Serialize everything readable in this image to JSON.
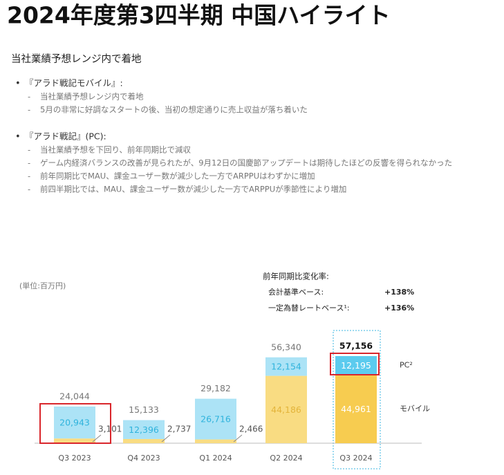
{
  "title": "2024年度第3四半期 中国ハイライト",
  "subtitle": "当社業績予想レンジ内で着地",
  "sections": [
    {
      "heading": "『アラド戦記モバイル』:",
      "items": [
        "当社業績予想レンジ内で着地",
        "5月の非常に好調なスタートの後、当初の想定通りに売上収益が落ち着いた"
      ]
    },
    {
      "heading": "『アラド戦記』(PC):",
      "items": [
        "当社業績予想を下回り、前年同期比で減収",
        "ゲーム内経済バランスの改善が見られたが、9月12日の国慶節アップデートは期待したほどの反響を得られなかった",
        "前年同期比でMAU、課金ユーザー数が減少した一方でARPPUはわずかに増加",
        "前四半期比では、MAU、課金ユーザー数が減少した一方でARPPUが季節性により増加"
      ]
    }
  ],
  "chart_data": {
    "type": "stacked-bar",
    "unit": "(単位:百万円)",
    "yoy": {
      "title": "前年同期比変化率:",
      "rows": [
        {
          "label": "会計基準ベース:",
          "value": "+138%"
        },
        {
          "label": "一定為替レートベース¹:",
          "value": "+136%"
        }
      ]
    },
    "categories": [
      "Q3 2023",
      "Q4 2023",
      "Q1 2024",
      "Q2 2024",
      "Q3 2024"
    ],
    "series": [
      {
        "name": "モバイル",
        "color": "#f9dc82",
        "values": [
          3101,
          2737,
          2466,
          44186,
          44961
        ],
        "value_labels": [
          "3,101",
          "2,737",
          "2,466",
          "44,186",
          "44,961"
        ]
      },
      {
        "name": "PC²",
        "color": "#ace3f6",
        "values": [
          20943,
          12396,
          26716,
          12154,
          12195
        ],
        "value_labels": [
          "20,943",
          "12,396",
          "26,716",
          "12,154",
          "12,195"
        ]
      }
    ],
    "totals": {
      "values": [
        24044,
        15133,
        29182,
        56340,
        57156
      ],
      "value_labels": [
        "24,044",
        "15,133",
        "29,182",
        "56,340",
        "57,156"
      ]
    }
  }
}
